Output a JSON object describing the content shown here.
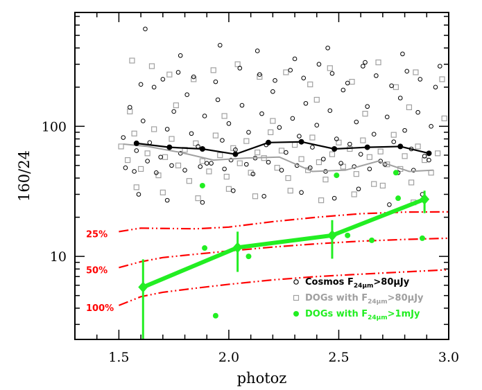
{
  "chart_data": {
    "type": "scatter",
    "title": "",
    "xlabel": "photoz",
    "ylabel": "160/24",
    "xlim": [
      1.3,
      3.0
    ],
    "ylim": [
      2.3,
      750
    ],
    "yscale": "log",
    "grid": false,
    "legend_position": "bottom-right",
    "x_tick_labels": [
      "1.5",
      "2.0",
      "2.5",
      "3.0"
    ],
    "y_tick_labels": [
      "10",
      "100"
    ],
    "colors": {
      "cosmos": "#000000",
      "dogs_80": "#a0a0a0",
      "dogs_1mjy": "#22ee22",
      "tracks": "#ff0000"
    },
    "series": [
      {
        "name": "Cosmos F24μm>80μJy",
        "legend": {
          "prefix": "Cosmos F",
          "sub": "24μm",
          "suffix": ">80μJy"
        },
        "marker": "open-circle",
        "color": "#000000",
        "x": [
          1.52,
          1.55,
          1.58,
          1.61,
          1.64,
          1.66,
          1.69,
          1.72,
          1.75,
          1.78,
          1.81,
          1.83,
          1.86,
          1.89,
          1.92,
          1.95,
          1.97,
          2.0,
          2.03,
          2.06,
          2.09,
          2.12,
          2.15,
          2.17,
          2.2,
          2.23,
          2.26,
          2.29,
          2.32,
          2.35,
          2.38,
          2.4,
          2.43,
          2.46,
          2.49,
          2.52,
          2.55,
          2.58,
          2.6,
          2.63,
          2.66,
          2.69,
          2.72,
          2.75,
          2.78,
          2.8,
          2.83,
          2.86,
          2.89,
          2.92,
          1.53,
          1.57,
          1.6,
          1.63,
          1.67,
          1.7,
          1.74,
          1.77,
          1.8,
          1.84,
          1.87,
          1.9,
          1.94,
          1.98,
          2.01,
          2.05,
          2.08,
          2.11,
          2.14,
          2.18,
          2.21,
          2.24,
          2.28,
          2.31,
          2.34,
          2.37,
          2.41,
          2.44,
          2.47,
          2.51,
          2.54,
          2.57,
          2.61,
          2.64,
          2.67,
          2.71,
          2.74,
          2.77,
          2.81,
          2.84,
          2.87,
          2.91,
          2.94,
          1.62,
          1.78,
          1.96,
          2.13,
          2.3,
          2.45,
          2.62,
          2.79,
          2.96,
          1.59,
          1.72,
          1.88,
          2.02,
          2.16,
          2.33,
          2.48,
          2.59,
          2.73,
          2.88
        ],
        "y": [
          82,
          140,
          65,
          110,
          75,
          200,
          58,
          95,
          130,
          62,
          175,
          88,
          70,
          120,
          52,
          160,
          78,
          105,
          66,
          145,
          90,
          57,
          125,
          72,
          185,
          98,
          63,
          115,
          84,
          150,
          69,
          102,
          56,
          132,
          80,
          190,
          73,
          108,
          61,
          142,
          87,
          54,
          118,
          76,
          165,
          93,
          67,
          128,
          59,
          100,
          48,
          45,
          210,
          54,
          44,
          230,
          50,
          260,
          46,
          240,
          49,
          52,
          220,
          47,
          55,
          280,
          51,
          43,
          250,
          53,
          225,
          46,
          270,
          50,
          235,
          48,
          300,
          45,
          255,
          52,
          215,
          49,
          290,
          47,
          245,
          51,
          205,
          44,
          265,
          46,
          230,
          55,
          200,
          560,
          350,
          420,
          380,
          330,
          400,
          310,
          360,
          290,
          30,
          27,
          26,
          32,
          29,
          31,
          28,
          33,
          25,
          30
        ]
      },
      {
        "name": "DOGs with F24μm>80μJy",
        "legend": {
          "prefix": "DOGs with F",
          "sub": "24μm",
          "suffix": ">80μJy"
        },
        "marker": "open-square",
        "color": "#a0a0a0",
        "x": [
          1.51,
          1.54,
          1.57,
          1.6,
          1.63,
          1.66,
          1.68,
          1.71,
          1.74,
          1.77,
          1.8,
          1.82,
          1.85,
          1.88,
          1.91,
          1.94,
          1.96,
          1.99,
          2.02,
          2.05,
          2.08,
          2.1,
          2.13,
          2.16,
          2.19,
          2.22,
          2.24,
          2.27,
          2.3,
          2.33,
          2.36,
          2.38,
          2.41,
          2.44,
          2.47,
          2.5,
          2.52,
          2.55,
          2.58,
          2.61,
          2.64,
          2.66,
          2.69,
          2.72,
          2.75,
          2.78,
          2.8,
          2.83,
          2.86,
          2.89,
          2.92,
          2.95,
          1.56,
          1.65,
          1.73,
          1.84,
          1.93,
          2.04,
          2.14,
          2.26,
          2.37,
          2.46,
          2.56,
          2.68,
          2.76,
          2.85,
          2.97,
          1.58,
          1.7,
          1.86,
          2.0,
          2.12,
          2.28,
          2.42,
          2.57,
          2.7,
          2.84,
          1.55,
          1.76,
          1.98,
          2.2,
          2.4,
          2.62,
          2.82,
          2.98
        ],
        "y": [
          70,
          55,
          88,
          47,
          62,
          95,
          42,
          58,
          80,
          50,
          66,
          38,
          74,
          54,
          45,
          85,
          60,
          41,
          68,
          52,
          77,
          44,
          63,
          57,
          90,
          48,
          65,
          40,
          72,
          56,
          46,
          82,
          53,
          39,
          61,
          75,
          49,
          67,
          43,
          78,
          58,
          36,
          64,
          51,
          86,
          47,
          59,
          37,
          70,
          55,
          44,
          62,
          320,
          290,
          250,
          230,
          270,
          300,
          240,
          260,
          210,
          280,
          220,
          310,
          200,
          260,
          230,
          34,
          31,
          28,
          33,
          29,
          32,
          27,
          30,
          35,
          26,
          130,
          145,
          120,
          110,
          160,
          125,
          140,
          115
        ]
      },
      {
        "name": "DOGs with F24μm>1mJy",
        "legend": {
          "prefix": "DOGs with F",
          "sub": "24μm",
          "suffix": ">1mJy"
        },
        "marker": "filled-circle",
        "color": "#22ee22",
        "x": [
          1.88,
          1.94,
          1.89,
          2.09,
          2.49,
          2.54,
          2.65,
          2.76,
          2.77,
          2.88
        ],
        "y": [
          35,
          3.5,
          11.6,
          10.0,
          42,
          14.5,
          13.3,
          44,
          28,
          13.8
        ]
      }
    ],
    "lines": [
      {
        "name": "cosmos-median",
        "color": "#000000",
        "x": [
          1.58,
          1.73,
          1.88,
          2.03,
          2.18,
          2.33,
          2.48,
          2.63,
          2.78,
          2.91
        ],
        "y": [
          74,
          69,
          67,
          61,
          75,
          76,
          67,
          69,
          70,
          62
        ]
      },
      {
        "name": "dogs80-median",
        "color": "#a0a0a0",
        "x": [
          1.52,
          1.63,
          1.78,
          1.93,
          2.08,
          2.23,
          2.38,
          2.53,
          2.68,
          2.82,
          2.93
        ],
        "y": [
          73,
          70,
          63,
          55,
          57,
          58,
          45,
          46,
          54,
          45,
          46
        ]
      },
      {
        "name": "dogs1mjy-binned",
        "color": "#22ee22",
        "x": [
          1.61,
          2.04,
          2.47,
          2.89
        ],
        "y": [
          5.8,
          11.7,
          14.5,
          27.5
        ],
        "err_low": [
          2.0,
          7.6,
          9.6,
          21.5
        ],
        "err_high": [
          9.5,
          15.5,
          19.0,
          32.0
        ]
      }
    ],
    "tracks": [
      {
        "label": "25%",
        "x": [
          1.5,
          1.6,
          1.7,
          1.85,
          2.0,
          2.2,
          2.4,
          2.6,
          2.8,
          3.0
        ],
        "y": [
          15.5,
          16.5,
          16.4,
          16.3,
          16.8,
          18.5,
          20.0,
          21.3,
          21.9,
          22.0
        ]
      },
      {
        "label": "50%",
        "x": [
          1.5,
          1.6,
          1.7,
          1.85,
          2.0,
          2.2,
          2.4,
          2.6,
          2.8,
          3.0
        ],
        "y": [
          8.2,
          9.1,
          9.8,
          10.4,
          11.0,
          11.8,
          12.5,
          13.1,
          13.5,
          13.8
        ]
      },
      {
        "label": "100%",
        "x": [
          1.5,
          1.6,
          1.7,
          1.85,
          2.0,
          2.2,
          2.4,
          2.6,
          2.8,
          3.0
        ],
        "y": [
          4.2,
          4.9,
          5.3,
          5.7,
          6.1,
          6.6,
          7.0,
          7.3,
          7.6,
          7.9
        ]
      }
    ]
  }
}
